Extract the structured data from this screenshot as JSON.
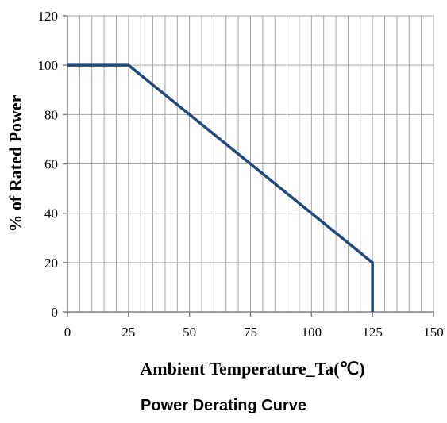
{
  "chart_data": {
    "type": "line",
    "x": [
      0,
      25,
      125,
      125
    ],
    "series": [
      {
        "values": [
          100,
          100,
          20,
          0
        ]
      }
    ],
    "xlabel": "Ambient  Temperature_Ta(℃)",
    "ylabel": "% of Rated Power",
    "xlim": [
      0,
      150
    ],
    "ylim": [
      0,
      120
    ],
    "xticks": [
      "0",
      "25",
      "50",
      "75",
      "100",
      "125",
      "150"
    ],
    "yticks": [
      "0",
      "20",
      "40",
      "60",
      "80",
      "100",
      "120"
    ],
    "grid": true,
    "minor_x_step": 5,
    "line_color": "#1f497d",
    "grid_color": "#a6a6a6"
  },
  "caption": "Power Derating Curve"
}
